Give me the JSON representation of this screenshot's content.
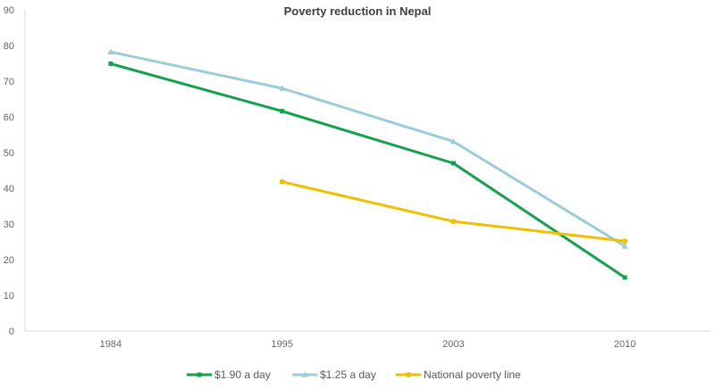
{
  "chart_data": {
    "type": "line",
    "title": "Poverty reduction in Nepal",
    "xlabel": "",
    "ylabel": "",
    "categories": [
      "1984",
      "1995",
      "2003",
      "2010"
    ],
    "ylim": [
      0,
      90
    ],
    "yticks": [
      0,
      10,
      20,
      30,
      40,
      50,
      60,
      70,
      80,
      90
    ],
    "grid": false,
    "legend_position": "bottom",
    "series": [
      {
        "name": "$1.90 a day",
        "color": "#12a24b",
        "marker": "square",
        "values": [
          74.9,
          61.6,
          47.0,
          15.0
        ]
      },
      {
        "name": "$1.25 a day",
        "color": "#9ccbd9",
        "marker": "triangle",
        "values": [
          78.2,
          68.0,
          53.1,
          23.8
        ]
      },
      {
        "name": "National poverty line",
        "color": "#f0bf00",
        "marker": "circle",
        "values": [
          null,
          41.8,
          30.7,
          25.2
        ]
      }
    ]
  }
}
